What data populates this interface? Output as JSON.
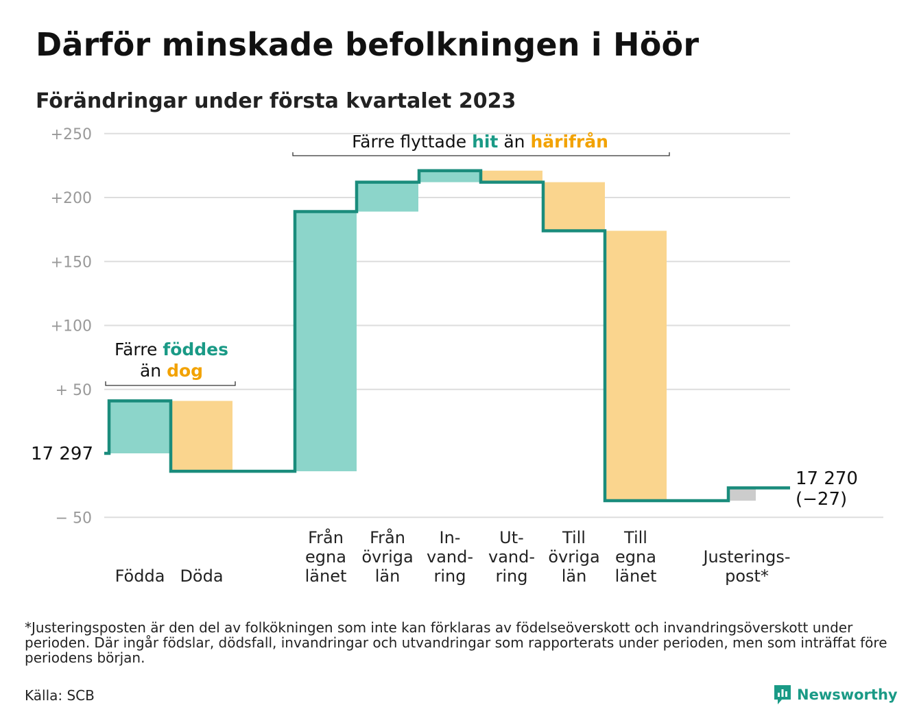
{
  "title": "Därför minskade befolkningen i Höör",
  "subtitle": "Förändringar under första kvartalet 2023",
  "colors": {
    "increase_fill": "#8cd5ca",
    "decrease_fill": "#fad58e",
    "adjustment_fill": "#cccccc",
    "line": "#1a8c7c",
    "accent_teal": "#1a9a86",
    "accent_orange": "#f2a200",
    "grid": "#dddddd",
    "tick_text": "#999999"
  },
  "chart_data": {
    "type": "waterfall",
    "start_value": 17297,
    "start_label": "17 297",
    "end_value": 17270,
    "end_label": "17 270",
    "end_change_label": "(−27)",
    "ylim": [
      -50,
      250
    ],
    "ytick_values": [
      -50,
      50,
      100,
      150,
      200,
      250
    ],
    "ytick_labels": [
      "− 50",
      "+ 50",
      "+100",
      "+150",
      "+200",
      "+250"
    ],
    "steps": [
      {
        "label_lines": [
          "Födda"
        ],
        "value": 41,
        "kind": "increase"
      },
      {
        "label_lines": [
          "Döda"
        ],
        "value": -55,
        "kind": "decrease"
      },
      {
        "label_lines": [
          "Från",
          "egna",
          "länet"
        ],
        "value": 203,
        "kind": "increase"
      },
      {
        "label_lines": [
          "Från",
          "övriga",
          "län"
        ],
        "value": 23,
        "kind": "increase"
      },
      {
        "label_lines": [
          "In-",
          "vand-",
          "ring"
        ],
        "value": 9,
        "kind": "increase"
      },
      {
        "label_lines": [
          "Ut-",
          "vand-",
          "ring"
        ],
        "value": -9,
        "kind": "decrease"
      },
      {
        "label_lines": [
          "Till",
          "övriga",
          "län"
        ],
        "value": -38,
        "kind": "decrease"
      },
      {
        "label_lines": [
          "Till",
          "egna",
          "länet"
        ],
        "value": -211,
        "kind": "decrease"
      },
      {
        "label_lines": [
          "Justerings-",
          "post*"
        ],
        "value": 10,
        "kind": "adjustment"
      }
    ],
    "annotations": [
      {
        "id": "births",
        "parts": [
          {
            "text": "Färre ",
            "color": "dark"
          },
          {
            "text": "föddes",
            "color": "teal"
          },
          {
            "text": "än ",
            "color": "dark",
            "newline": true
          },
          {
            "text": "dog",
            "color": "orange"
          }
        ]
      },
      {
        "id": "migration",
        "parts": [
          {
            "text": "Färre flyttade ",
            "color": "dark"
          },
          {
            "text": "hit",
            "color": "teal"
          },
          {
            "text": " än ",
            "color": "dark"
          },
          {
            "text": "härifrån",
            "color": "orange"
          }
        ]
      }
    ]
  },
  "footnote": "*Justeringsposten är den del av folkökningen som inte kan förklaras av födelseöverskott och invandringsöverskott under perioden. Där ingår födslar, dödsfall, invandringar och utvandringar som rapporterats under perioden, men som inträffat före periodens början.",
  "source": "Källa: SCB",
  "brand": {
    "name": "Newsworthy",
    "icon": "newsworthy-logo-icon"
  }
}
